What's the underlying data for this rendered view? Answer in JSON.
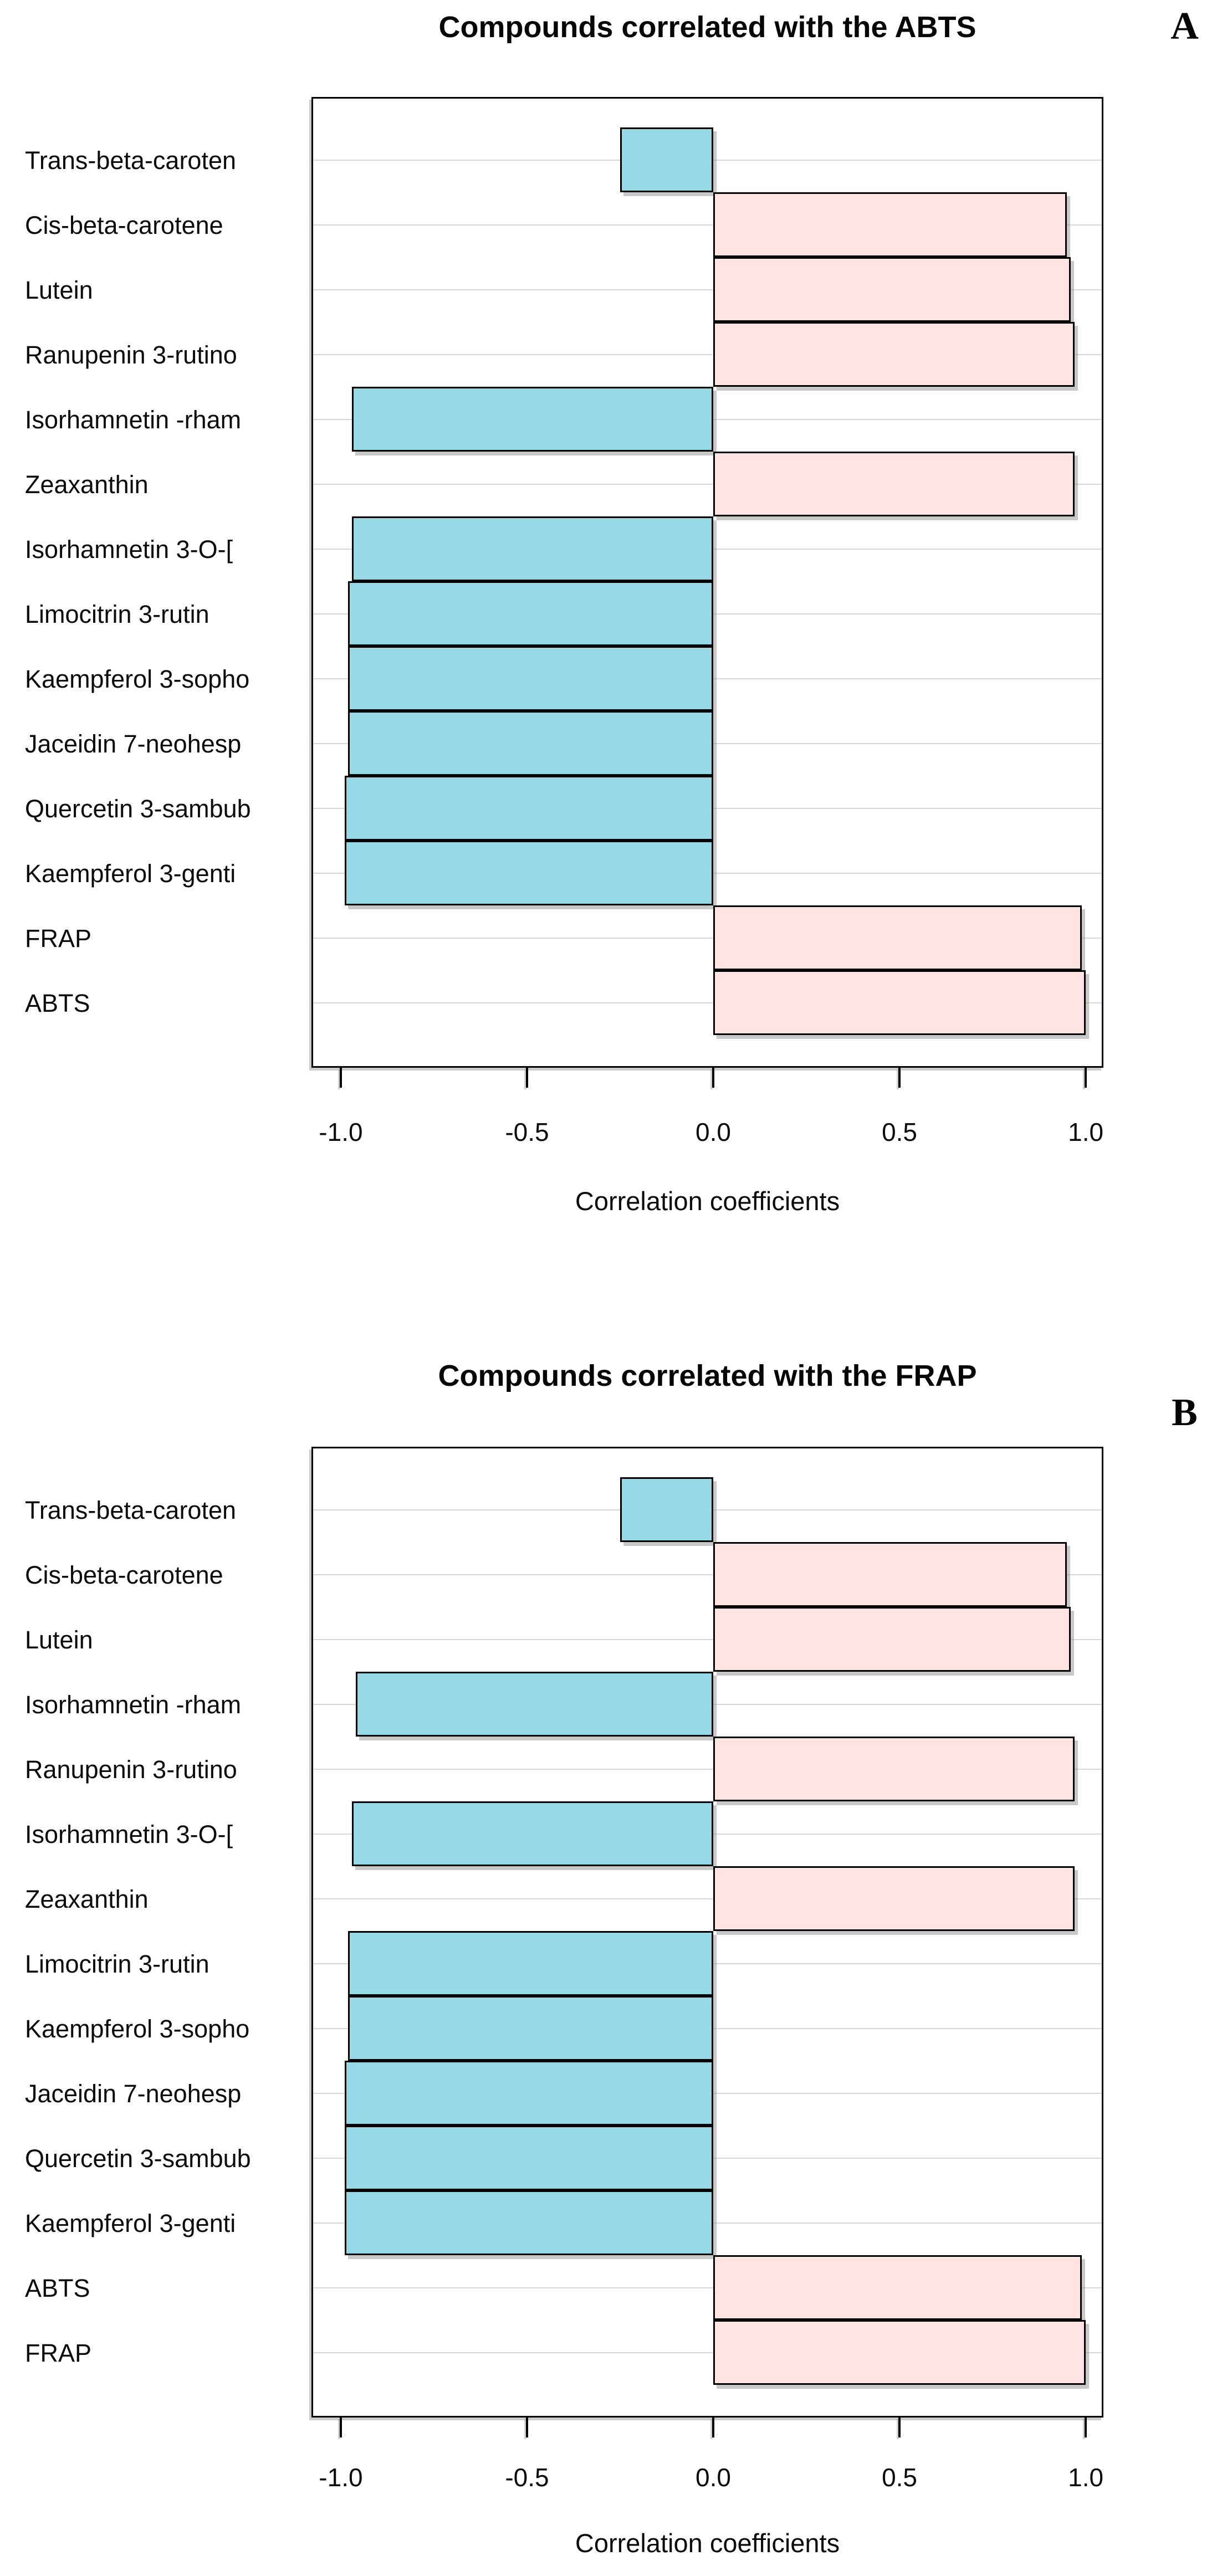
{
  "page": {
    "background": "#ffffff"
  },
  "chart_data": [
    {
      "type": "bar",
      "orientation": "horizontal",
      "panel_label": "A",
      "title": "Compounds correlated with the ABTS",
      "xlabel": "Correlation coefficients",
      "xlim": [
        -1.0743,
        1.043
      ],
      "grid": true,
      "legend": "none",
      "xticks": [
        {
          "value": -1.0,
          "label": "-1.0"
        },
        {
          "value": -0.5,
          "label": "-0.5"
        },
        {
          "value": 0.0,
          "label": "0.0"
        },
        {
          "value": 0.5,
          "label": "0.5"
        },
        {
          "value": 1.0,
          "label": "1.0"
        }
      ],
      "categories": [
        "Trans-beta-caroten",
        "Cis-beta-carotene",
        "Lutein",
        "Ranupenin 3-rutino",
        "Isorhamnetin -rham",
        "Zeaxanthin",
        "Isorhamnetin 3-O-[",
        "Limocitrin 3-rutin",
        "Kaempferol 3-sopho",
        "Jaceidin 7-neohesp",
        "Quercetin 3-sambub",
        "Kaempferol 3-genti",
        "FRAP",
        "ABTS"
      ],
      "values": [
        -0.25,
        0.95,
        0.96,
        0.97,
        -0.97,
        0.97,
        -0.97,
        -0.98,
        -0.98,
        -0.98,
        -0.99,
        -0.99,
        0.99,
        1.0
      ],
      "colors": {
        "positive_fill": "#FFE4E1",
        "negative_fill": "#97D8E7",
        "bar_border": "#000000",
        "gridline": "#D8D8D8"
      }
    },
    {
      "type": "bar",
      "orientation": "horizontal",
      "panel_label": "B",
      "title": "Compounds correlated with the FRAP",
      "xlabel": "Correlation coefficients",
      "xlim": [
        -1.0743,
        1.043
      ],
      "grid": true,
      "legend": "none",
      "xticks": [
        {
          "value": -1.0,
          "label": "-1.0"
        },
        {
          "value": -0.5,
          "label": "-0.5"
        },
        {
          "value": 0.0,
          "label": "0.0"
        },
        {
          "value": 0.5,
          "label": "0.5"
        },
        {
          "value": 1.0,
          "label": "1.0"
        }
      ],
      "categories": [
        "Trans-beta-caroten",
        "Cis-beta-carotene",
        "Lutein",
        "Isorhamnetin -rham",
        "Ranupenin 3-rutino",
        "Isorhamnetin 3-O-[",
        "Zeaxanthin",
        "Limocitrin 3-rutin",
        "Kaempferol 3-sopho",
        "Jaceidin 7-neohesp",
        "Quercetin 3-sambub",
        "Kaempferol 3-genti",
        "ABTS",
        "FRAP"
      ],
      "values": [
        -0.25,
        0.95,
        0.96,
        -0.96,
        0.97,
        -0.97,
        0.97,
        -0.98,
        -0.98,
        -0.99,
        -0.99,
        -0.99,
        0.99,
        1.0
      ],
      "colors": {
        "positive_fill": "#FFE4E1",
        "negative_fill": "#97D8E7",
        "bar_border": "#000000",
        "gridline": "#D8D8D8"
      }
    }
  ]
}
